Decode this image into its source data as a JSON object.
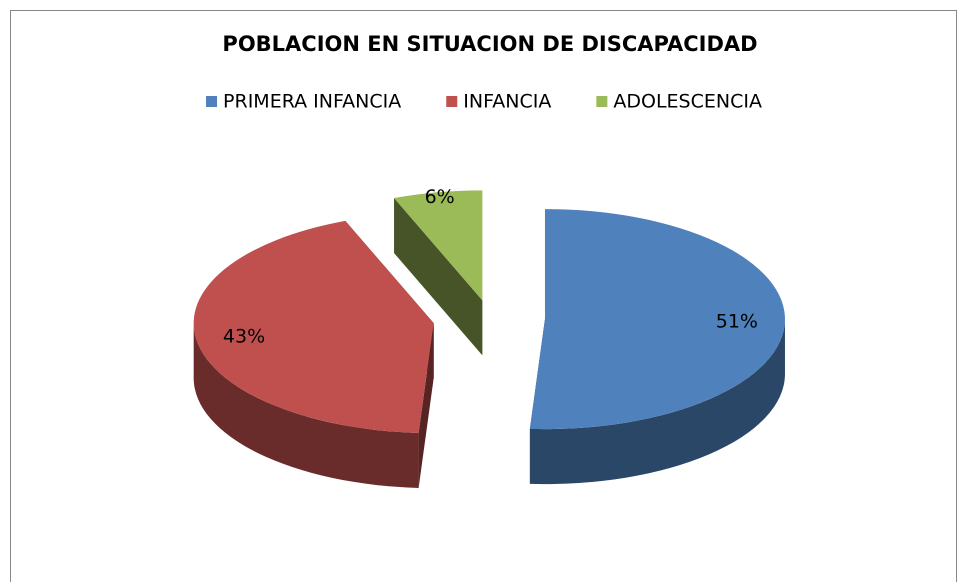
{
  "chart_data": {
    "type": "pie3d",
    "title": "POBLACION EN SITUACION DE DISCAPACIDAD",
    "categories": [
      "PRIMERA INFANCIA",
      "INFANCIA",
      "ADOLESCENCIA"
    ],
    "values": [
      51,
      43,
      6
    ],
    "value_labels": [
      "51%",
      "43%",
      "6%"
    ],
    "colors": [
      "#4f81bd",
      "#c0504d",
      "#9bbb59"
    ],
    "legend": "top"
  }
}
